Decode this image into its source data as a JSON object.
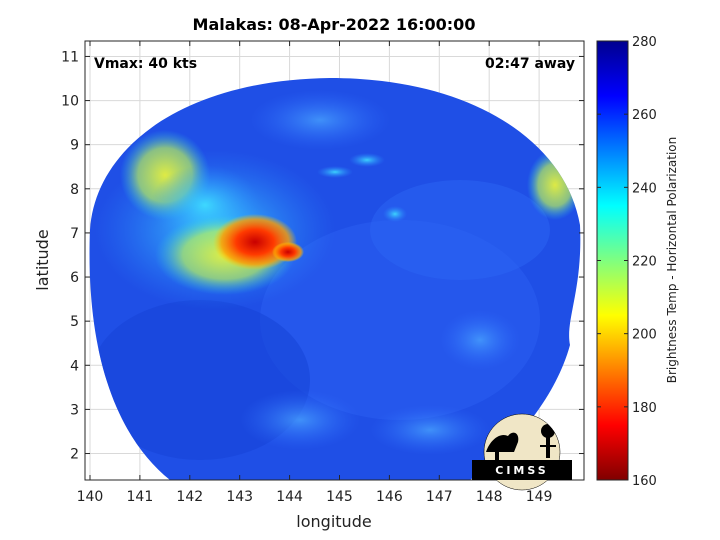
{
  "title": "Malakas: 08-Apr-2022 16:00:00",
  "annotations": {
    "vmax": "Vmax: 40 kts",
    "time_away": "02:47 away"
  },
  "axes": {
    "xlabel": "longitude",
    "ylabel": "latitude",
    "x_ticks": [
      "140",
      "141",
      "142",
      "143",
      "144",
      "145",
      "146",
      "147",
      "148",
      "149"
    ],
    "y_ticks": [
      "11",
      "10",
      "9",
      "8",
      "7",
      "6",
      "5",
      "4",
      "3",
      "2"
    ],
    "x_range": [
      139.9,
      149.9
    ],
    "y_range": [
      1.4,
      11.35
    ],
    "grid": true
  },
  "colorbar": {
    "label": "Brightness Temp - Horizontal Polarization",
    "ticks": [
      "280",
      "260",
      "240",
      "220",
      "200",
      "180",
      "160"
    ],
    "range": [
      160,
      280
    ],
    "colormap": "jet"
  },
  "logo": {
    "text": "CIMSS"
  },
  "colors": {
    "ocean_blue": "#1f4fe6",
    "background": "#ffffff",
    "grid": "#d9d9d9"
  }
}
